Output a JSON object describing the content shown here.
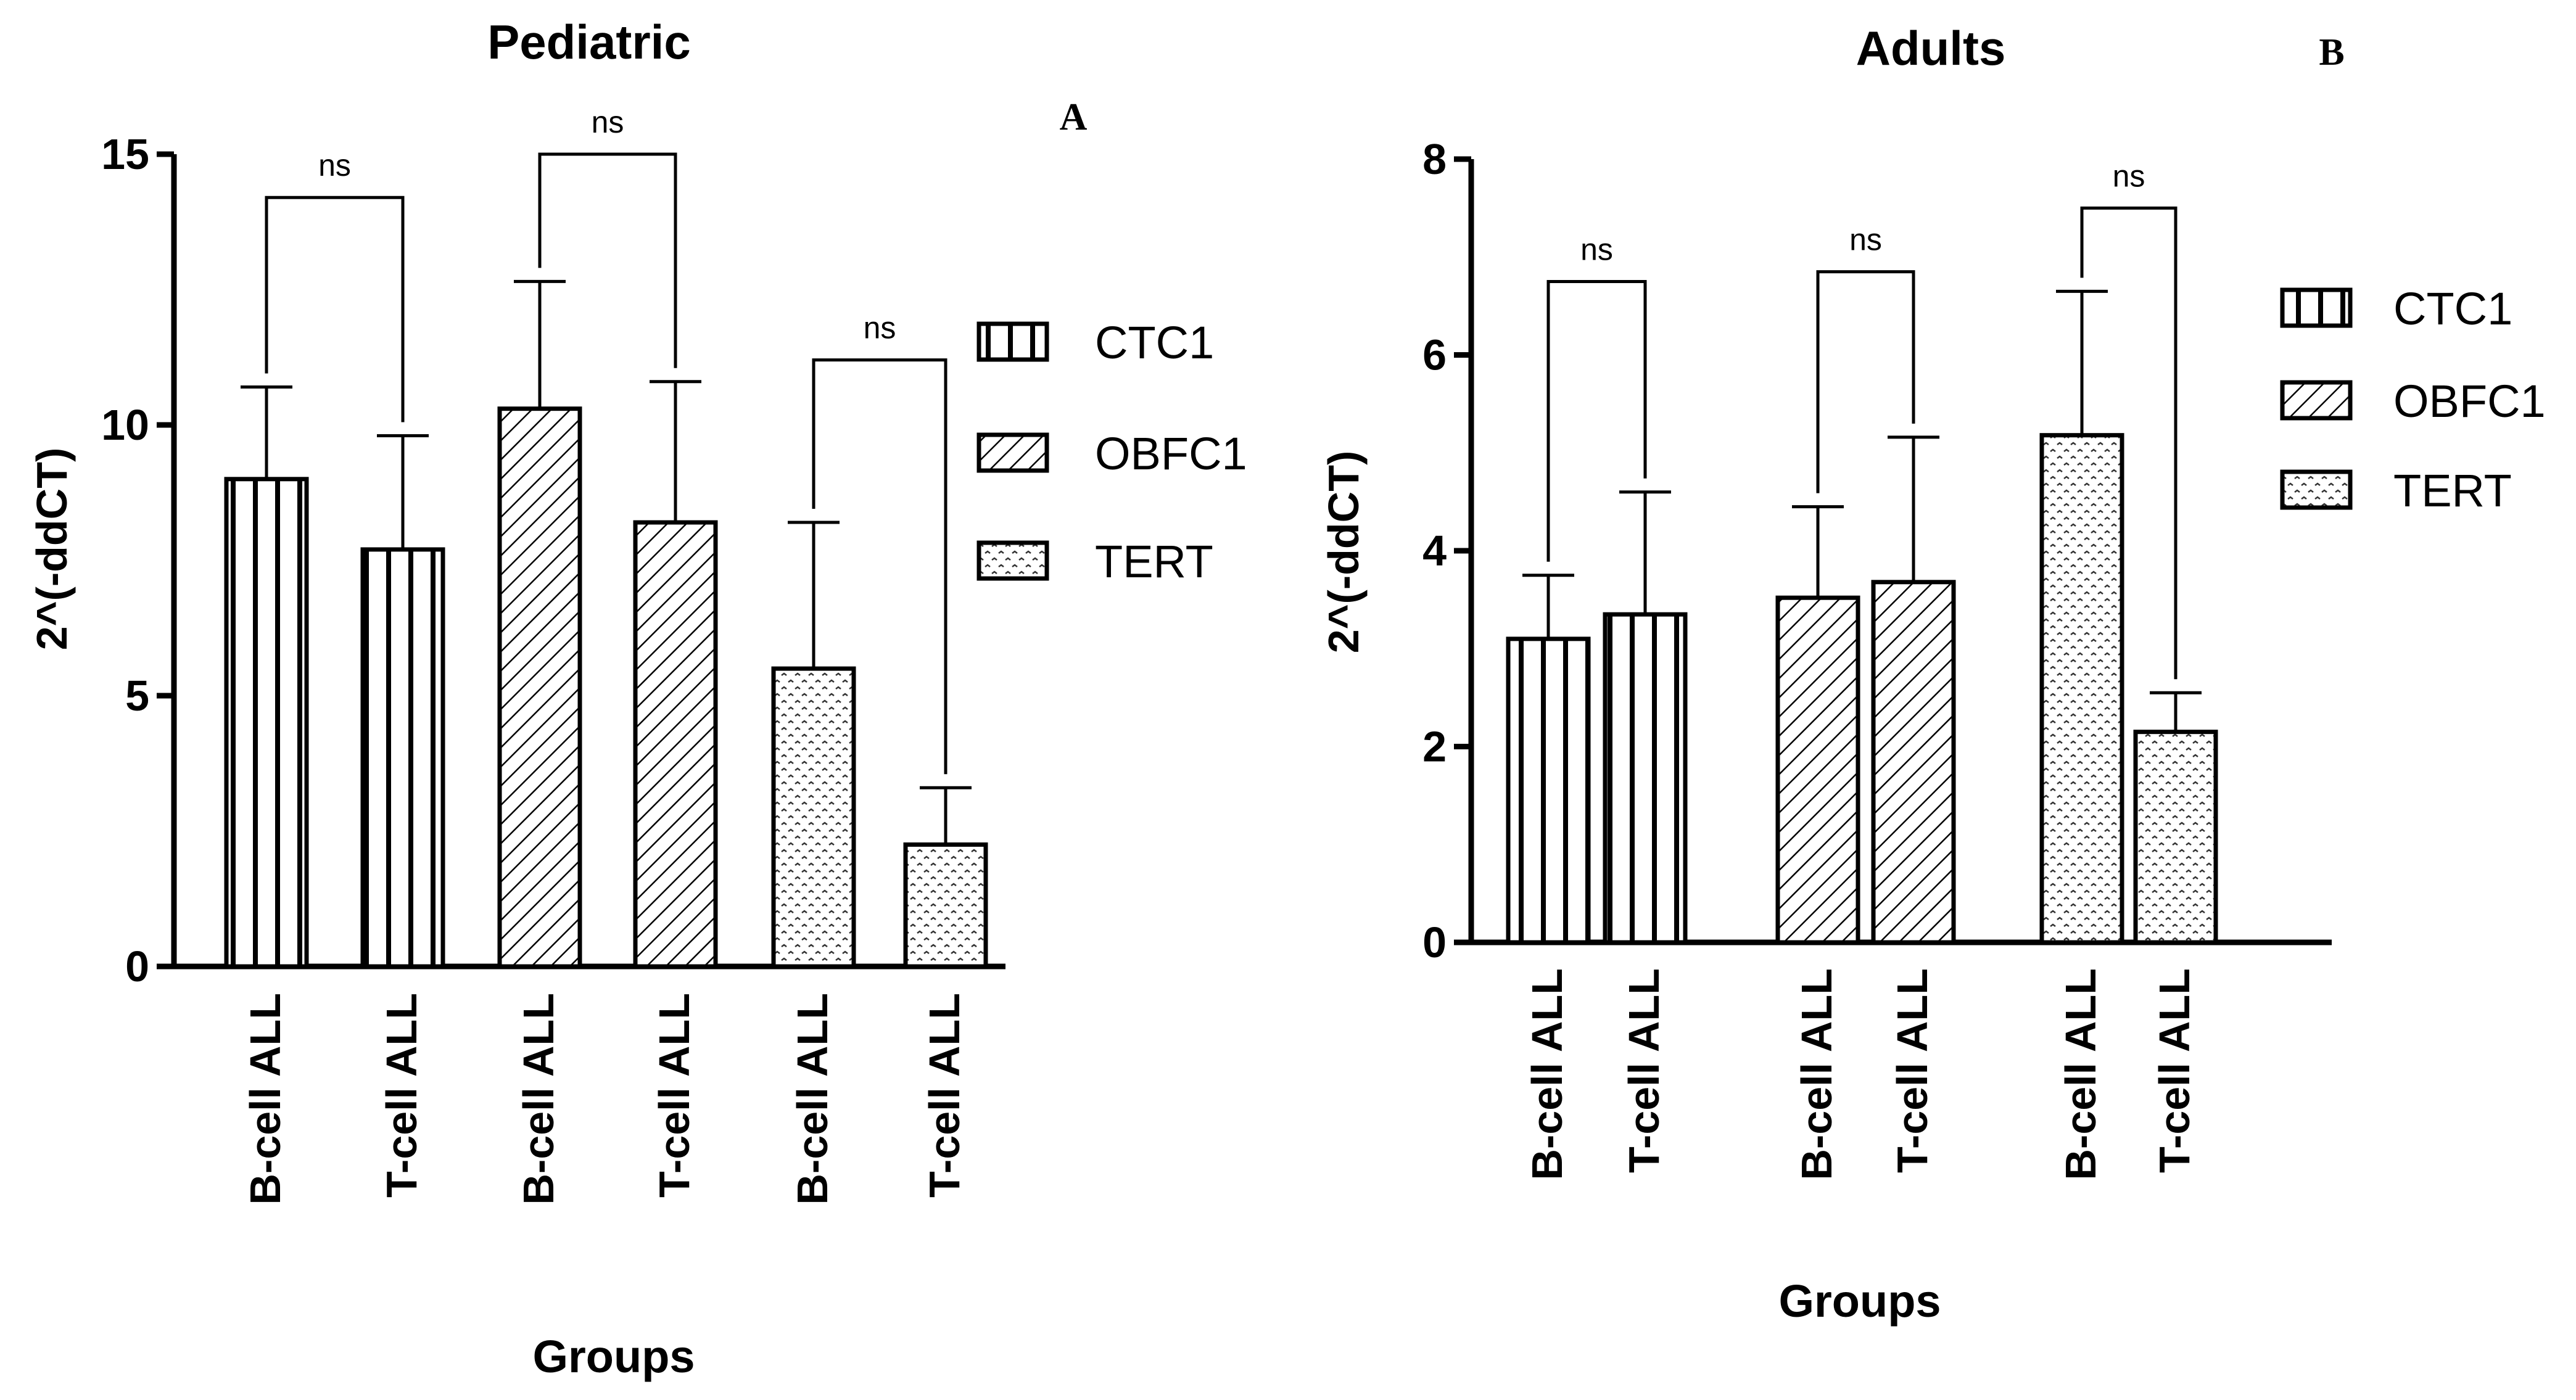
{
  "chart_data": [
    {
      "panel_label": "A",
      "type": "bar",
      "title": "Pediatric",
      "xlabel": "Groups",
      "ylabel": "2^(-ddCT)",
      "ylim": [
        0,
        15
      ],
      "yticks": [
        0,
        5,
        10,
        15
      ],
      "bars": [
        {
          "series": "CTC1",
          "category": "B-cell ALL",
          "value": 9.0,
          "error": 1.7
        },
        {
          "series": "CTC1",
          "category": "T-cell ALL",
          "value": 7.7,
          "error": 2.1
        },
        {
          "series": "OBFC1",
          "category": "B-cell ALL",
          "value": 10.3,
          "error": 2.35
        },
        {
          "series": "OBFC1",
          "category": "T-cell ALL",
          "value": 8.2,
          "error": 2.6
        },
        {
          "series": "TERT",
          "category": "B-cell ALL",
          "value": 5.5,
          "error": 2.7
        },
        {
          "series": "TERT",
          "category": "T-cell ALL",
          "value": 2.25,
          "error": 1.05
        }
      ],
      "significance": [
        {
          "series": "CTC1",
          "label": "ns",
          "bracket_y": 14.2
        },
        {
          "series": "OBFC1",
          "label": "ns",
          "bracket_y": 15.0
        },
        {
          "series": "TERT",
          "label": "ns",
          "bracket_y": 11.2
        }
      ],
      "legend": [
        {
          "label": "CTC1",
          "pattern": "vertical"
        },
        {
          "label": "OBFC1",
          "pattern": "diagonal"
        },
        {
          "label": "TERT",
          "pattern": "dots"
        }
      ]
    },
    {
      "panel_label": "B",
      "type": "bar",
      "title": "Adults",
      "xlabel": "Groups",
      "ylabel": "2^(-ddCT)",
      "ylim": [
        0,
        8
      ],
      "yticks": [
        0,
        2,
        4,
        6,
        8
      ],
      "bars": [
        {
          "series": "CTC1",
          "category": "B-cell ALL",
          "value": 3.1,
          "error": 0.65
        },
        {
          "series": "CTC1",
          "category": "T-cell ALL",
          "value": 3.35,
          "error": 1.25
        },
        {
          "series": "OBFC1",
          "category": "B-cell ALL",
          "value": 3.52,
          "error": 0.93
        },
        {
          "series": "OBFC1",
          "category": "T-cell ALL",
          "value": 3.68,
          "error": 1.48
        },
        {
          "series": "TERT",
          "category": "B-cell ALL",
          "value": 5.18,
          "error": 1.47
        },
        {
          "series": "TERT",
          "category": "T-cell ALL",
          "value": 2.15,
          "error": 0.4
        }
      ],
      "significance": [
        {
          "series": "CTC1",
          "label": "ns",
          "bracket_y": 6.75
        },
        {
          "series": "OBFC1",
          "label": "ns",
          "bracket_y": 6.85
        },
        {
          "series": "TERT",
          "label": "ns",
          "bracket_y": 7.5
        }
      ],
      "legend": [
        {
          "label": "CTC1",
          "pattern": "vertical"
        },
        {
          "label": "OBFC1",
          "pattern": "diagonal"
        },
        {
          "label": "TERT",
          "pattern": "dots"
        }
      ]
    }
  ]
}
